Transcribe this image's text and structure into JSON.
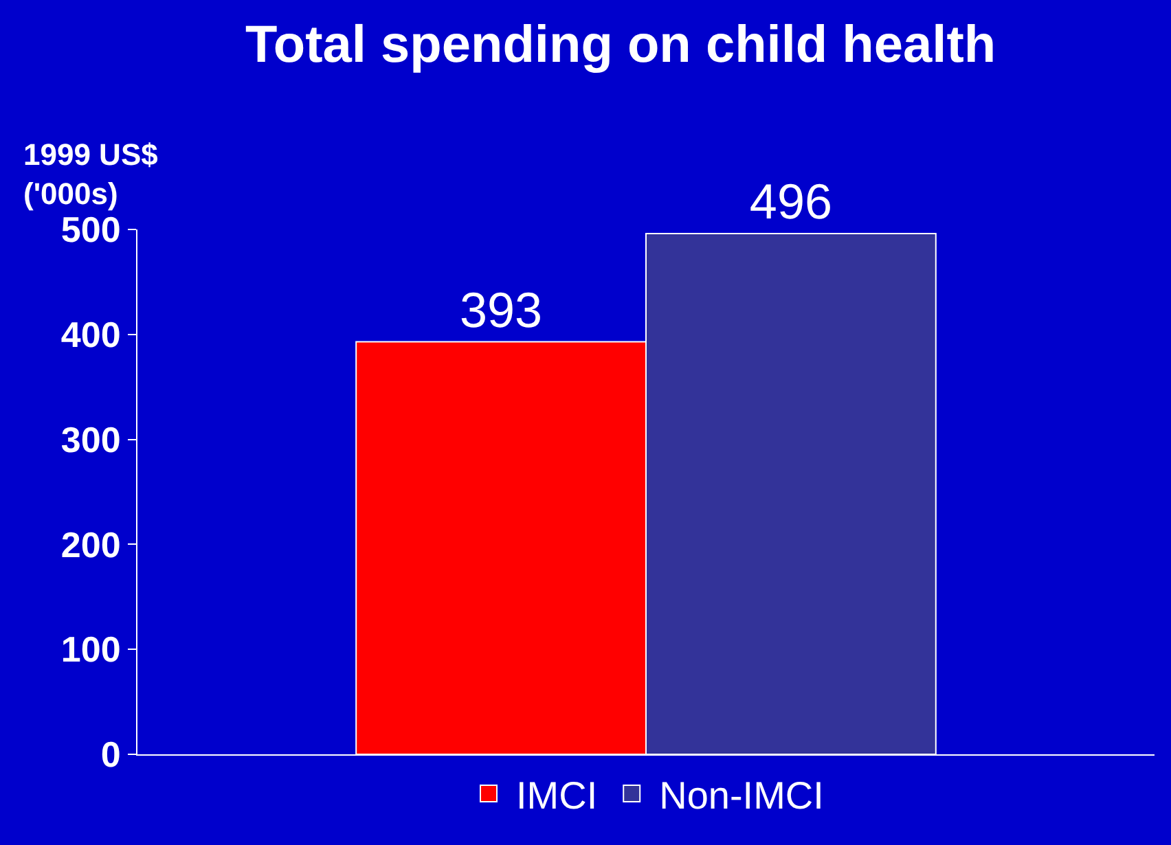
{
  "chart_data": {
    "type": "bar",
    "title": "Total spending on child health",
    "ylabel": "1999 US$\n('000s)",
    "categories": [
      null
    ],
    "series": [
      {
        "name": "IMCI",
        "color": "#ff0000",
        "values": [
          393
        ]
      },
      {
        "name": "Non-IMCI",
        "color": "#333399",
        "values": [
          496
        ]
      }
    ],
    "ylim": [
      0,
      500
    ],
    "yticks": [
      0,
      100,
      200,
      300,
      400,
      500
    ],
    "grid": false,
    "legend": "bottom",
    "data_labels": true
  }
}
